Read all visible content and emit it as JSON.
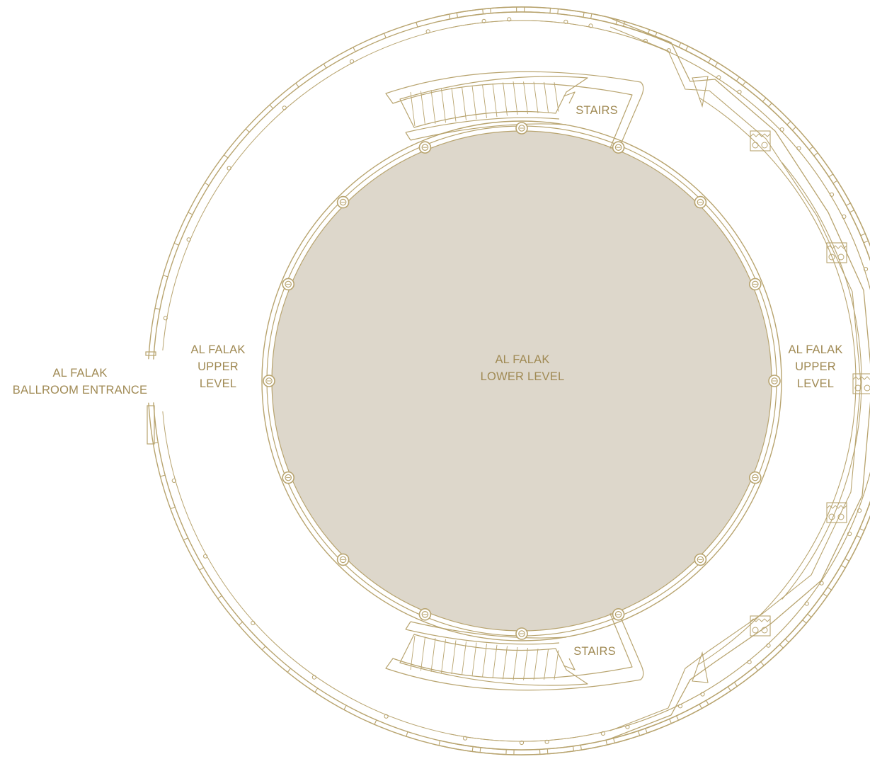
{
  "colors": {
    "line": "#b8a46f",
    "label": "#a08a54",
    "floor": "#ddd7cb",
    "background": "#ffffff"
  },
  "labels": {
    "entrance": [
      "AL FALAK",
      "BALLROOM ENTRANCE"
    ],
    "upper_left": [
      "AL FALAK",
      "UPPER",
      "LEVEL"
    ],
    "upper_right": [
      "AL FALAK",
      "UPPER",
      "LEVEL"
    ],
    "lower": [
      "AL FALAK",
      "LOWER LEVEL"
    ],
    "stairs_top": "STAIRS",
    "stairs_bottom": "STAIRS"
  },
  "icons": [
    "column-icon",
    "stair-tread-icon",
    "window-mullion-icon"
  ]
}
